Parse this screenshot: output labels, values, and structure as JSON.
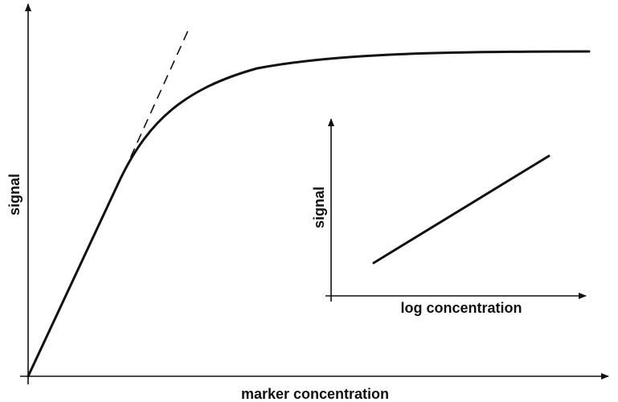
{
  "main_plot": {
    "x_label": "marker concentration",
    "y_label": "signal"
  },
  "inset_plot": {
    "x_label": "log concentration",
    "y_label": "signal"
  }
}
